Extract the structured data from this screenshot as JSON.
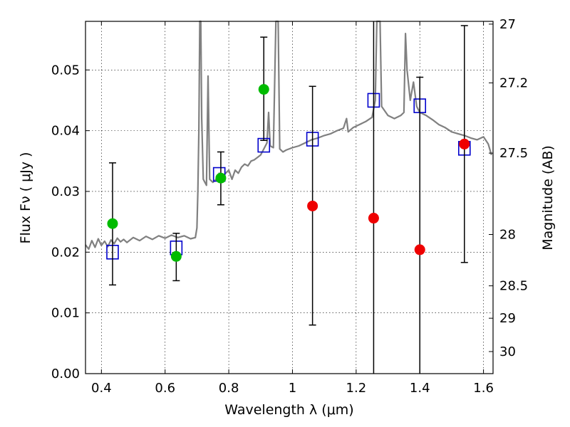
{
  "chart_data": {
    "type": "scatter",
    "title": "",
    "xlabel": "Wavelength  λ (μm)",
    "ylabel": "Flux  Fν  ( μJy )",
    "y2label": "Magnitude (AB)",
    "xlim": [
      0.35,
      1.63
    ],
    "ylim": [
      0.0,
      0.058
    ],
    "grid": true,
    "x_ticks": [
      0.4,
      0.6,
      0.8,
      1.0,
      1.2,
      1.4,
      1.6
    ],
    "x_tick_labels": [
      "0.4",
      "0.6",
      "0.8",
      "1",
      "1.2",
      "1.4",
      "1.6"
    ],
    "y_ticks": [
      0.0,
      0.01,
      0.02,
      0.03,
      0.04,
      0.05
    ],
    "y_tick_labels": [
      "0.00",
      "0.01",
      "0.02",
      "0.03",
      "0.04",
      "0.05"
    ],
    "y2_ticks": [
      {
        "label": "27",
        "mag": 27.0
      },
      {
        "label": "27.2",
        "mag": 27.2
      },
      {
        "label": "27.5",
        "mag": 27.5
      },
      {
        "label": "28",
        "mag": 28.0
      },
      {
        "label": "28.5",
        "mag": 28.5
      },
      {
        "label": "29",
        "mag": 29.0
      },
      {
        "label": "30",
        "mag": 30.0
      }
    ],
    "colors": {
      "spectrum": "#808080",
      "model": "#0000cc",
      "detected": "#00bb00",
      "upper_limit": "#ee0000",
      "errorbar": "#000000"
    },
    "series": [
      {
        "marker": "square",
        "points": [
          {
            "x": 0.435,
            "y": 0.02
          },
          {
            "x": 0.635,
            "y": 0.0207
          },
          {
            "x": 0.77,
            "y": 0.0328
          },
          {
            "x": 0.91,
            "y": 0.0376
          },
          {
            "x": 1.063,
            "y": 0.0386
          },
          {
            "x": 1.255,
            "y": 0.045
          },
          {
            "x": 1.4,
            "y": 0.0441
          },
          {
            "x": 1.54,
            "y": 0.0371
          }
        ]
      },
      {
        "marker": "circle",
        "points": [
          {
            "x": 0.435,
            "y": 0.0247,
            "err_low": 0.0146,
            "err_high": 0.0347
          },
          {
            "x": 0.635,
            "y": 0.0193,
            "err_low": 0.0153,
            "err_high": 0.0231
          },
          {
            "x": 0.775,
            "y": 0.0322,
            "err_low": 0.0278,
            "err_high": 0.0365
          },
          {
            "x": 0.91,
            "y": 0.0468,
            "err_low": 0.0384,
            "err_high": 0.0554
          }
        ]
      },
      {
        "marker": "circle",
        "points": [
          {
            "x": 1.063,
            "y": 0.0276,
            "err_low": 0.008,
            "err_high": 0.0473
          },
          {
            "x": 1.255,
            "y": 0.0256,
            "err_low": 0.0,
            "err_high": 0.058
          },
          {
            "x": 1.4,
            "y": 0.0204,
            "err_low": 0.0,
            "err_high": 0.0488
          },
          {
            "x": 1.54,
            "y": 0.0378,
            "err_low": 0.0183,
            "err_high": 0.0573
          }
        ]
      },
      {
        "type": "line",
        "points": [
          [
            0.35,
            0.0212
          ],
          [
            0.36,
            0.0205
          ],
          [
            0.37,
            0.0219
          ],
          [
            0.38,
            0.0208
          ],
          [
            0.39,
            0.0222
          ],
          [
            0.4,
            0.0211
          ],
          [
            0.41,
            0.0218
          ],
          [
            0.42,
            0.0209
          ],
          [
            0.43,
            0.022
          ],
          [
            0.44,
            0.0214
          ],
          [
            0.45,
            0.0223
          ],
          [
            0.46,
            0.0217
          ],
          [
            0.47,
            0.0221
          ],
          [
            0.48,
            0.0216
          ],
          [
            0.5,
            0.0224
          ],
          [
            0.52,
            0.0219
          ],
          [
            0.54,
            0.0226
          ],
          [
            0.56,
            0.0221
          ],
          [
            0.58,
            0.0227
          ],
          [
            0.6,
            0.0223
          ],
          [
            0.62,
            0.0228
          ],
          [
            0.64,
            0.0224
          ],
          [
            0.66,
            0.0227
          ],
          [
            0.68,
            0.0222
          ],
          [
            0.695,
            0.0224
          ],
          [
            0.7,
            0.024
          ],
          [
            0.703,
            0.03
          ],
          [
            0.706,
            0.04
          ],
          [
            0.709,
            0.058
          ],
          [
            0.712,
            0.058
          ],
          [
            0.715,
            0.042
          ],
          [
            0.72,
            0.032
          ],
          [
            0.73,
            0.031
          ],
          [
            0.735,
            0.049
          ],
          [
            0.74,
            0.032
          ],
          [
            0.75,
            0.0315
          ],
          [
            0.76,
            0.032
          ],
          [
            0.77,
            0.033
          ],
          [
            0.78,
            0.0325
          ],
          [
            0.79,
            0.033
          ],
          [
            0.8,
            0.0335
          ],
          [
            0.81,
            0.032
          ],
          [
            0.82,
            0.0335
          ],
          [
            0.83,
            0.033
          ],
          [
            0.84,
            0.034
          ],
          [
            0.85,
            0.0345
          ],
          [
            0.86,
            0.0342
          ],
          [
            0.87,
            0.035
          ],
          [
            0.88,
            0.0352
          ],
          [
            0.89,
            0.0356
          ],
          [
            0.9,
            0.036
          ],
          [
            0.91,
            0.037
          ],
          [
            0.92,
            0.038
          ],
          [
            0.925,
            0.043
          ],
          [
            0.93,
            0.0375
          ],
          [
            0.94,
            0.0372
          ],
          [
            0.948,
            0.058
          ],
          [
            0.955,
            0.058
          ],
          [
            0.96,
            0.037
          ],
          [
            0.97,
            0.0365
          ],
          [
            0.98,
            0.0368
          ],
          [
            1.0,
            0.0372
          ],
          [
            1.02,
            0.0375
          ],
          [
            1.04,
            0.038
          ],
          [
            1.06,
            0.0385
          ],
          [
            1.08,
            0.0388
          ],
          [
            1.1,
            0.0392
          ],
          [
            1.12,
            0.0395
          ],
          [
            1.14,
            0.04
          ],
          [
            1.16,
            0.0404
          ],
          [
            1.17,
            0.042
          ],
          [
            1.175,
            0.0398
          ],
          [
            1.19,
            0.0405
          ],
          [
            1.21,
            0.041
          ],
          [
            1.23,
            0.0415
          ],
          [
            1.25,
            0.0422
          ],
          [
            1.26,
            0.045
          ],
          [
            1.265,
            0.058
          ],
          [
            1.275,
            0.058
          ],
          [
            1.28,
            0.044
          ],
          [
            1.3,
            0.0425
          ],
          [
            1.32,
            0.042
          ],
          [
            1.34,
            0.0425
          ],
          [
            1.35,
            0.043
          ],
          [
            1.355,
            0.056
          ],
          [
            1.36,
            0.05
          ],
          [
            1.37,
            0.045
          ],
          [
            1.38,
            0.048
          ],
          [
            1.39,
            0.044
          ],
          [
            1.4,
            0.043
          ],
          [
            1.42,
            0.0425
          ],
          [
            1.44,
            0.0418
          ],
          [
            1.46,
            0.041
          ],
          [
            1.48,
            0.0405
          ],
          [
            1.5,
            0.0398
          ],
          [
            1.52,
            0.0395
          ],
          [
            1.54,
            0.0392
          ],
          [
            1.56,
            0.0388
          ],
          [
            1.58,
            0.0385
          ],
          [
            1.6,
            0.039
          ],
          [
            1.615,
            0.0378
          ],
          [
            1.625,
            0.036
          ]
        ]
      }
    ]
  }
}
